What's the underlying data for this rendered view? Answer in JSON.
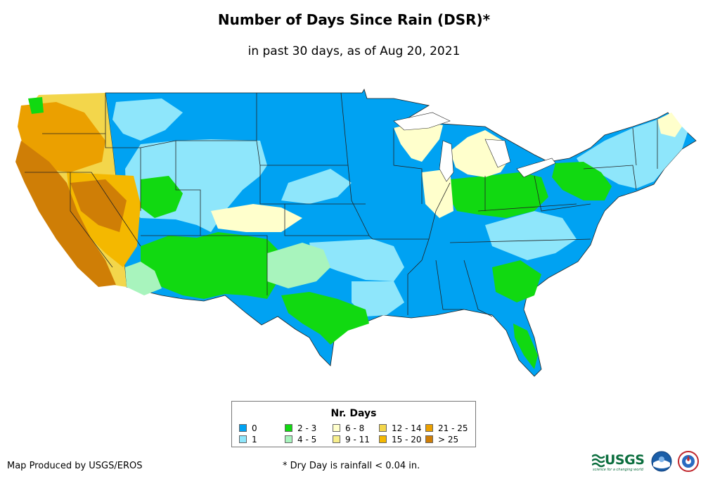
{
  "header": {
    "title": "Number of Days Since Rain (DSR)*",
    "subtitle": "in past 30 days, as of Aug 20, 2021"
  },
  "legend": {
    "title": "Nr. Days",
    "items": [
      {
        "label": "0",
        "color": "#00a2f2"
      },
      {
        "label": "1",
        "color": "#8ee6fb"
      },
      {
        "label": "2 - 3",
        "color": "#11d911"
      },
      {
        "label": "4 - 5",
        "color": "#a8f4bd"
      },
      {
        "label": "6 - 8",
        "color": "#ffffcc"
      },
      {
        "label": "9 - 11",
        "color": "#f8ef8c"
      },
      {
        "label": "12 - 14",
        "color": "#f3d64b"
      },
      {
        "label": "15 - 20",
        "color": "#f4b800"
      },
      {
        "label": "21 - 25",
        "color": "#eba000"
      },
      {
        "label": "> 25",
        "color": "#cf7e06"
      }
    ]
  },
  "footer": {
    "producer": "Map Produced by USGS/EROS",
    "note": "* Dry Day is rainfall < 0.04 in."
  },
  "logos": {
    "usgs_text": "USGS",
    "usgs_tagline": "science for a changing world"
  }
}
